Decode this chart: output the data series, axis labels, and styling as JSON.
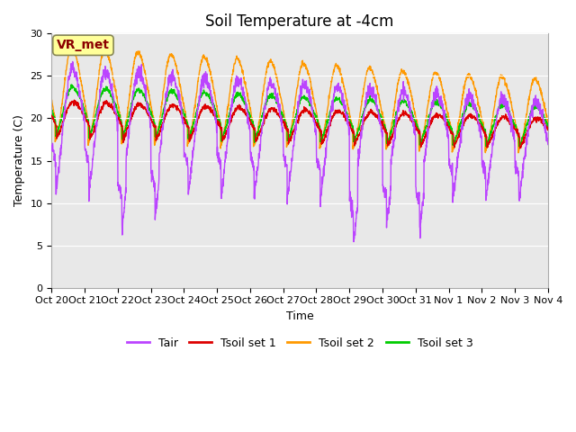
{
  "title": "Soil Temperature at -4cm",
  "xlabel": "Time",
  "ylabel": "Temperature (C)",
  "ylim": [
    0,
    30
  ],
  "background_color": "#ffffff",
  "plot_bg_color": "#e8e8e8",
  "annotation_text": "VR_met",
  "annotation_color": "#8b0000",
  "annotation_bg": "#ffff99",
  "line_colors": {
    "Tair": "#bb44ff",
    "Tsoil1": "#dd0000",
    "Tsoil2": "#ff9900",
    "Tsoil3": "#00cc00"
  },
  "legend_labels": [
    "Tair",
    "Tsoil set 1",
    "Tsoil set 2",
    "Tsoil set 3"
  ],
  "tick_labels": [
    "Oct 20",
    "Oct 21",
    "Oct 22",
    "Oct 23",
    "Oct 24",
    "Oct 25",
    "Oct 26",
    "Oct 27",
    "Oct 28",
    "Oct 29",
    "Oct 30",
    "Oct 31",
    "Nov 1",
    "Nov 2",
    "Nov 3",
    "Nov 4"
  ],
  "x_ticks": [
    0,
    1,
    2,
    3,
    4,
    5,
    6,
    7,
    8,
    9,
    10,
    11,
    12,
    13,
    14,
    15
  ],
  "title_fontsize": 12,
  "axis_label_fontsize": 9,
  "tick_fontsize": 8,
  "legend_fontsize": 9,
  "linewidth": 1.0,
  "yticks": [
    0,
    5,
    10,
    15,
    20,
    25,
    30
  ]
}
